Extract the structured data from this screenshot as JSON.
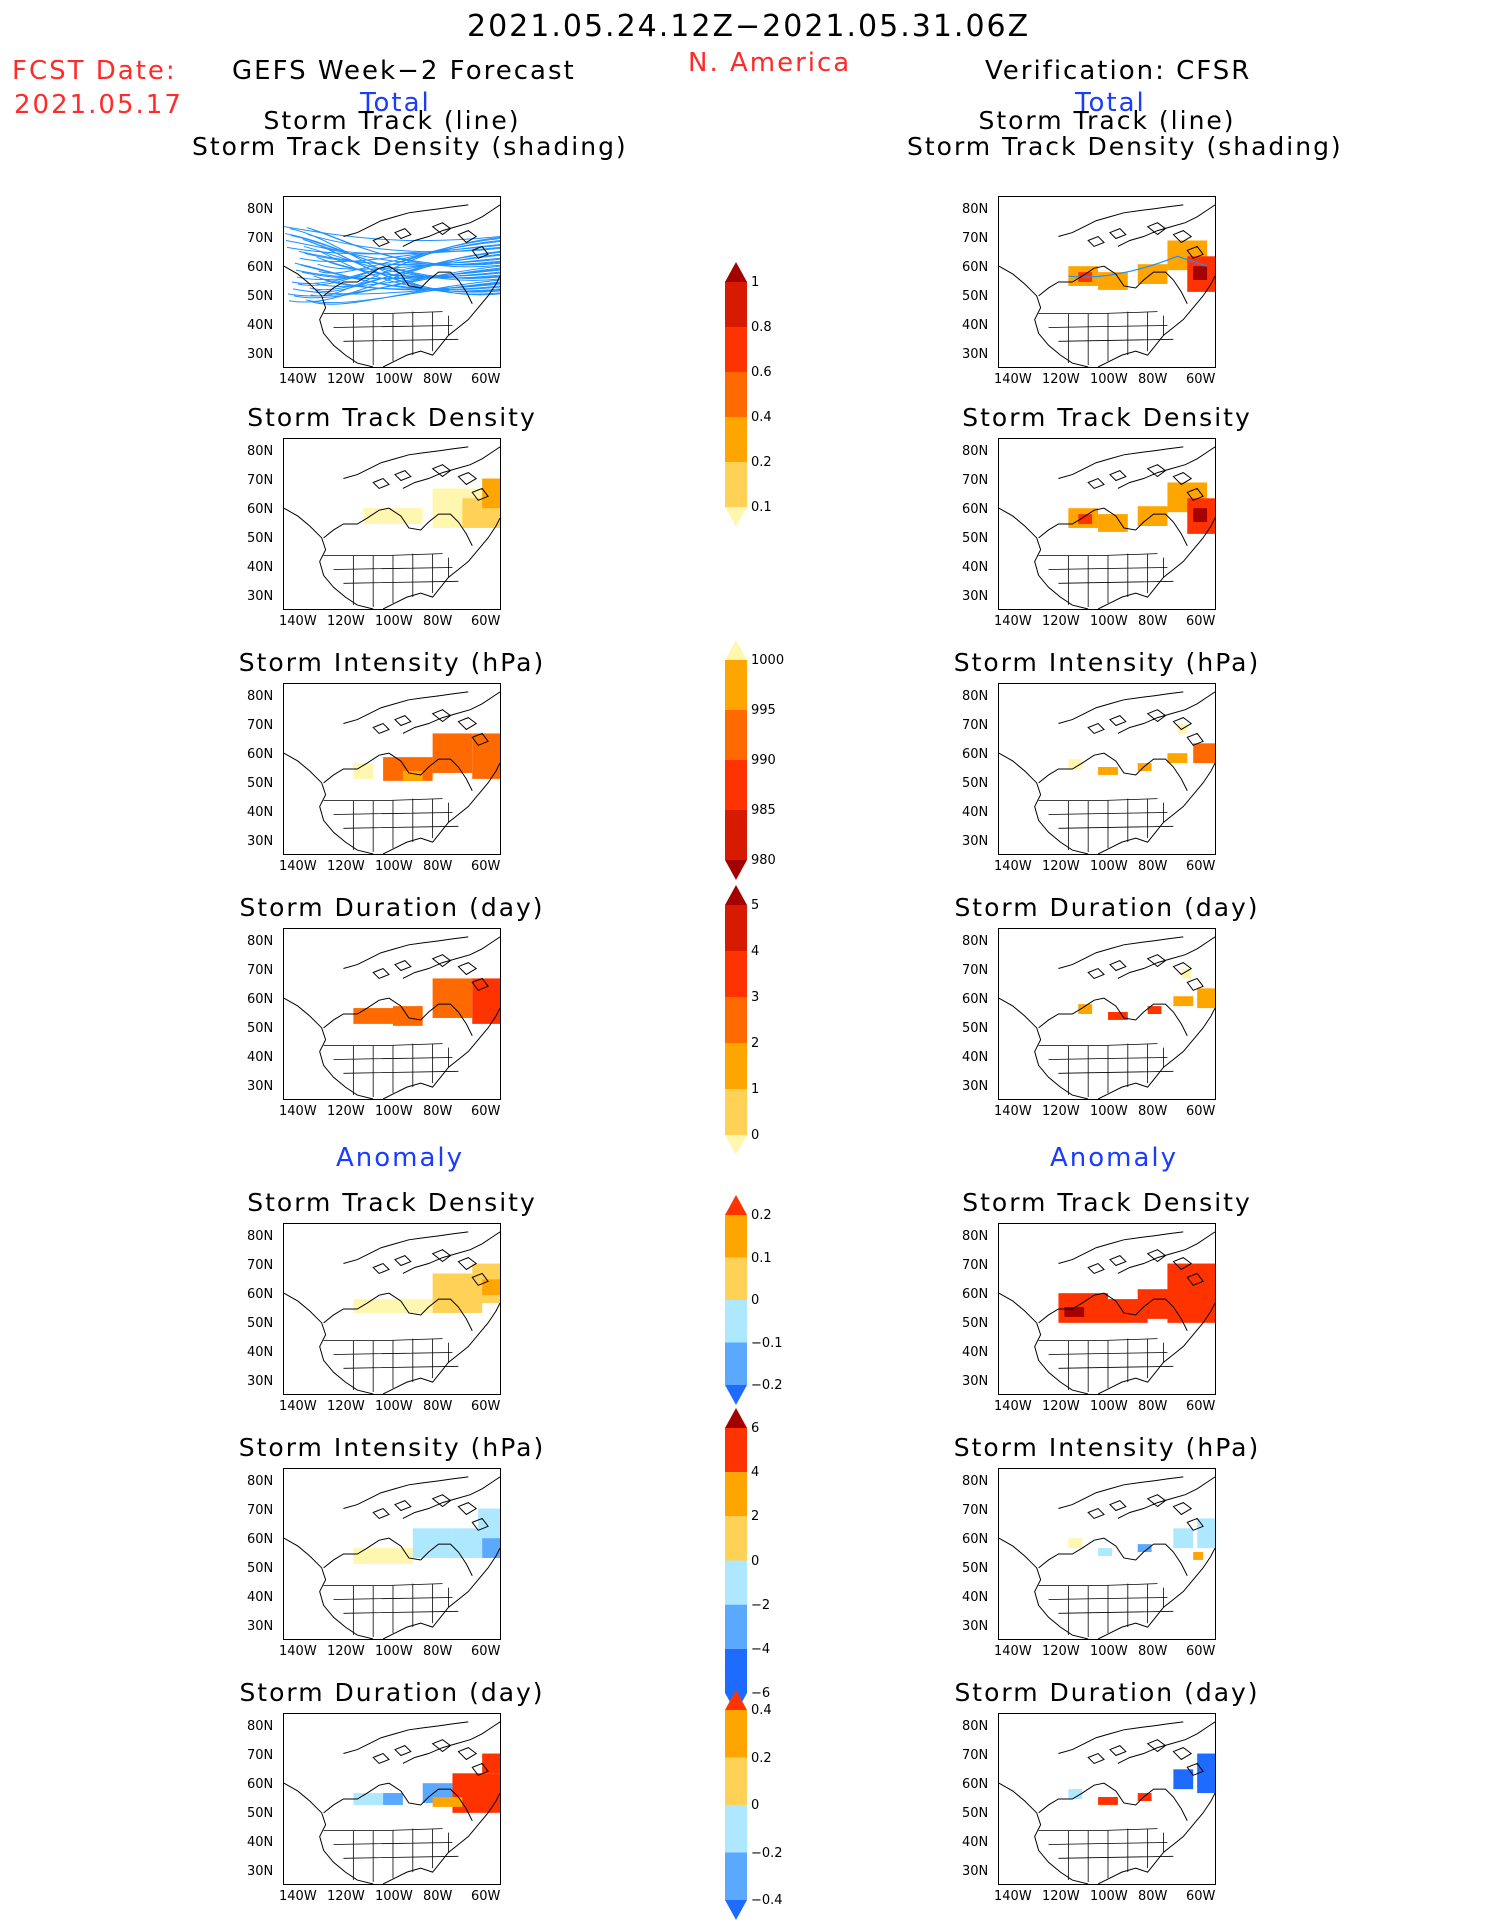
{
  "header": {
    "period": "2021.05.24.12Z−2021.05.31.06Z",
    "fcst_label": "FCST Date:",
    "fcst_date": "2021.05.17",
    "left_title": "GEFS Week−2 Forecast",
    "region": "N. America",
    "right_title": "Verification: CFSR",
    "total_left": "Total",
    "total_right": "Total",
    "anomaly_left": "Anomaly",
    "anomaly_right": "Anomaly"
  },
  "axes": {
    "y_ticks": [
      "80N",
      "70N",
      "60N",
      "50N",
      "40N",
      "30N"
    ],
    "x_ticks": [
      "140W",
      "120W",
      "100W",
      "80W",
      "60W"
    ]
  },
  "panels": {
    "row1_title_a": "Storm Track (line)",
    "row1_title_b": "Storm Track Density (shading)",
    "density": "Storm Track Density",
    "intensity": "Storm Intensity (hPa)",
    "duration": "Storm Duration (day)"
  },
  "colorbars": {
    "density_total": [
      "1",
      "0.8",
      "0.6",
      "0.4",
      "0.2",
      "0.1"
    ],
    "intensity_total": [
      "1000",
      "995",
      "990",
      "985",
      "980"
    ],
    "duration_total": [
      "5",
      "4",
      "3",
      "2",
      "1",
      "0"
    ],
    "density_anom": [
      "0.2",
      "0.1",
      "0",
      "−0.1",
      "−0.2"
    ],
    "intensity_anom": [
      "6",
      "4",
      "2",
      "0",
      "−2",
      "−4",
      "−6"
    ],
    "duration_anom": [
      "0.4",
      "0.2",
      "0",
      "−0.2",
      "−0.4"
    ]
  },
  "colors": {
    "title_red": "#ff2a2a",
    "label_blue": "#1a3cff",
    "track_blue": "#1e90ff",
    "pale_yellow": "#fff7b0",
    "yellow": "#ffd257",
    "orange": "#ffa500",
    "dark_orange": "#ff6a00",
    "red_orange": "#ff3300",
    "red": "#d61b00",
    "dark_red": "#a50000",
    "light_blue": "#aee8ff",
    "mid_blue": "#5aa9ff",
    "dark_blue": "#1e6cff"
  }
}
